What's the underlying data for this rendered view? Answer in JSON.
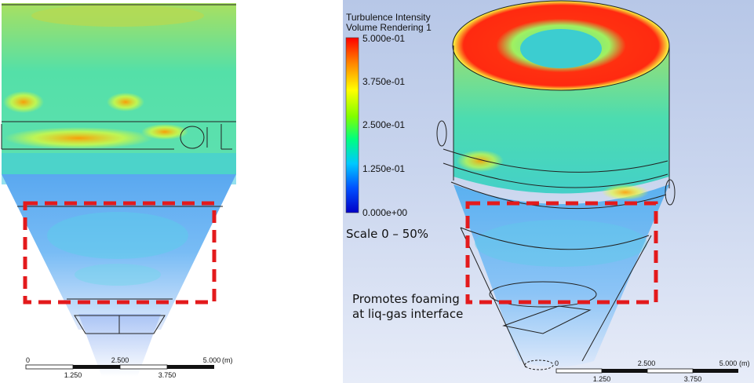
{
  "legend": {
    "title": "Turbulence Intensity",
    "subtitle": "Volume Rendering 1",
    "ticks": [
      "5.000e-01",
      "3.750e-01",
      "2.500e-01",
      "1.250e-01",
      "0.000e+00"
    ],
    "colormap": [
      "#ff0000",
      "#ff8000",
      "#ffff00",
      "#80ff00",
      "#00ff80",
      "#00c8ff",
      "#0050ff",
      "#0000c8"
    ]
  },
  "annotations": {
    "scale_note": "Scale 0 – 50%",
    "foam_note_line1": "Promotes foaming",
    "foam_note_line2": "at liq-gas interface"
  },
  "scale_bar_left": {
    "top_labels": [
      "0",
      "2.500",
      "5.000"
    ],
    "unit": "(m)",
    "bottom_labels": [
      "1.250",
      "3.750"
    ]
  },
  "scale_bar_right": {
    "top_labels": [
      "0",
      "2.500",
      "5.000"
    ],
    "unit": "(m)",
    "bottom_labels": [
      "1.250",
      "3.750"
    ]
  },
  "colors": {
    "highlight_box": "#e31a1c"
  }
}
